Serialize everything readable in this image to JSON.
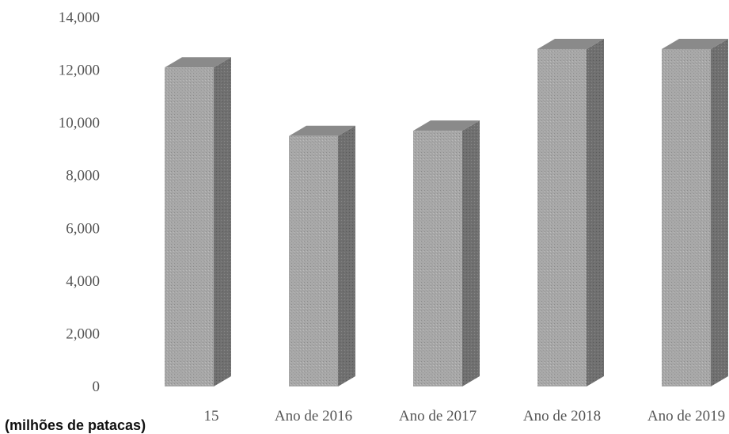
{
  "chart_data": {
    "type": "bar",
    "style": "3d-column",
    "categories": [
      "15",
      "Ano de 2016",
      "Ano de 2017",
      "Ano de 2018",
      "Ano de 2019"
    ],
    "series": [
      {
        "values": [
          12100,
          9500,
          9700,
          12800,
          12800
        ]
      }
    ],
    "yticks": [
      "0",
      "2,000",
      "4,000",
      "6,000",
      "8,000",
      "10,000",
      "12,000",
      "14,000"
    ],
    "ylim": [
      0,
      14000
    ],
    "ylabel": "(milhões de patacas)",
    "grid": false,
    "colors": {
      "bar_front": "#a6a6a6",
      "bar_side": "#6e6e6e",
      "bar_top": "#8a8a8a",
      "text": "#555555"
    }
  }
}
